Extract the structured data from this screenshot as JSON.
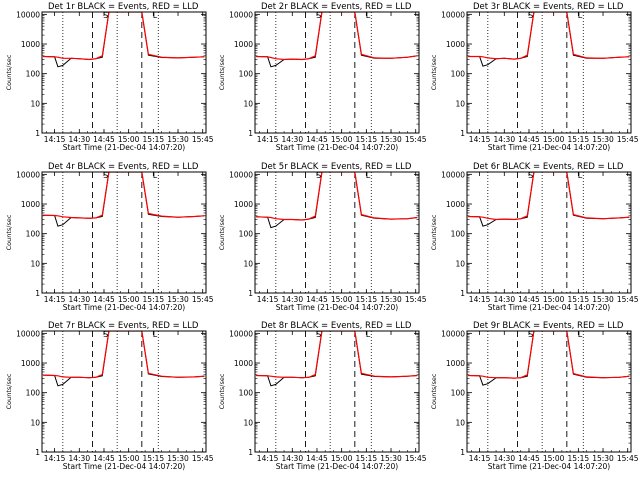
{
  "colors": {
    "events": "#000000",
    "lld": "#ff0000",
    "background": "#ffffff"
  },
  "shared": {
    "type": "line",
    "xlabel": "Start Time (21-Dec-04 14:07:20)",
    "ylabel": "Counts/sec",
    "xticks": [
      "14:15",
      "14:30",
      "14:45",
      "15:00",
      "15:15",
      "15:30",
      "15:45"
    ],
    "yticks": [
      "1",
      "10",
      "100",
      "1000",
      "10000"
    ],
    "yscale": "log",
    "ylim": [
      1,
      12000
    ],
    "xlim_minutes": [
      "14:07:20",
      "15:47:00"
    ],
    "dotted_lines": [
      "14:20",
      "14:53",
      "15:18"
    ],
    "dashed_lines": [
      "14:38",
      "15:08"
    ],
    "markers": {
      "S": "14:46",
      "L": "15:16"
    },
    "series_names": [
      "Events",
      "LLD"
    ]
  },
  "chart_data": [
    {
      "title": "Det 1r BLACK = Events, RED = LLD",
      "x": [
        "14:08",
        "14:15",
        "14:17",
        "14:20",
        "14:25",
        "14:30",
        "14:36",
        "14:40",
        "14:44",
        "14:48",
        "15:08",
        "15:12",
        "15:20",
        "15:30",
        "15:40",
        "15:46"
      ],
      "events": [
        380,
        370,
        170,
        190,
        330,
        320,
        300,
        320,
        360,
        12000,
        12000,
        420,
        350,
        340,
        360,
        370
      ],
      "lld": [
        380,
        370,
        360,
        330,
        330,
        320,
        300,
        320,
        400,
        12000,
        12000,
        450,
        360,
        340,
        360,
        370
      ]
    },
    {
      "title": "Det 2r BLACK = Events, RED = LLD",
      "x": [
        "14:08",
        "14:15",
        "14:17",
        "14:20",
        "14:25",
        "14:30",
        "14:36",
        "14:40",
        "14:44",
        "14:48",
        "15:08",
        "15:12",
        "15:20",
        "15:30",
        "15:40",
        "15:46"
      ],
      "events": [
        380,
        370,
        170,
        190,
        300,
        310,
        300,
        320,
        360,
        12000,
        12000,
        420,
        330,
        330,
        360,
        400
      ],
      "lld": [
        380,
        370,
        350,
        320,
        300,
        310,
        300,
        320,
        400,
        12000,
        12000,
        450,
        340,
        330,
        360,
        400
      ]
    },
    {
      "title": "Det 3r BLACK = Events, RED = LLD",
      "x": [
        "14:08",
        "14:15",
        "14:17",
        "14:20",
        "14:25",
        "14:30",
        "14:36",
        "14:40",
        "14:44",
        "14:48",
        "15:08",
        "15:12",
        "15:20",
        "15:30",
        "15:40",
        "15:46"
      ],
      "events": [
        380,
        380,
        180,
        200,
        320,
        330,
        310,
        330,
        380,
        12000,
        12000,
        420,
        330,
        330,
        360,
        370
      ],
      "lld": [
        380,
        380,
        370,
        340,
        320,
        330,
        310,
        330,
        420,
        12000,
        12000,
        450,
        340,
        330,
        360,
        370
      ]
    },
    {
      "title": "Det 4r BLACK = Events, RED = LLD",
      "x": [
        "14:08",
        "14:15",
        "14:17",
        "14:20",
        "14:25",
        "14:30",
        "14:36",
        "14:40",
        "14:44",
        "14:48",
        "15:08",
        "15:12",
        "15:20",
        "15:30",
        "15:40",
        "15:46"
      ],
      "events": [
        420,
        410,
        180,
        200,
        350,
        340,
        330,
        340,
        380,
        12000,
        12000,
        450,
        380,
        360,
        380,
        400
      ],
      "lld": [
        420,
        410,
        400,
        370,
        350,
        340,
        330,
        340,
        420,
        12000,
        12000,
        480,
        390,
        360,
        380,
        400
      ]
    },
    {
      "title": "Det 5r BLACK = Events, RED = LLD",
      "x": [
        "14:08",
        "14:15",
        "14:17",
        "14:20",
        "14:25",
        "14:30",
        "14:36",
        "14:40",
        "14:44",
        "14:48",
        "15:08",
        "15:12",
        "15:20",
        "15:30",
        "15:40",
        "15:46"
      ],
      "events": [
        370,
        360,
        160,
        180,
        300,
        300,
        290,
        310,
        350,
        12000,
        12000,
        420,
        330,
        310,
        320,
        350
      ],
      "lld": [
        370,
        360,
        350,
        320,
        300,
        300,
        290,
        310,
        390,
        12000,
        12000,
        440,
        340,
        310,
        320,
        350
      ]
    },
    {
      "title": "Det 6r BLACK = Events, RED = LLD",
      "x": [
        "14:08",
        "14:15",
        "14:17",
        "14:20",
        "14:25",
        "14:30",
        "14:36",
        "14:40",
        "14:44",
        "14:48",
        "15:08",
        "15:12",
        "15:20",
        "15:30",
        "15:40",
        "15:46"
      ],
      "events": [
        380,
        370,
        180,
        200,
        300,
        310,
        300,
        320,
        360,
        12000,
        12000,
        420,
        330,
        320,
        340,
        360
      ],
      "lld": [
        380,
        370,
        360,
        330,
        300,
        310,
        300,
        320,
        400,
        12000,
        12000,
        440,
        340,
        320,
        340,
        360
      ]
    },
    {
      "title": "Det 7r BLACK = Events, RED = LLD",
      "x": [
        "14:08",
        "14:15",
        "14:17",
        "14:20",
        "14:25",
        "14:30",
        "14:36",
        "14:40",
        "14:44",
        "14:48",
        "15:08",
        "15:12",
        "15:20",
        "15:30",
        "15:40",
        "15:46"
      ],
      "events": [
        390,
        380,
        170,
        190,
        330,
        330,
        320,
        330,
        370,
        12000,
        12000,
        430,
        350,
        330,
        340,
        360
      ],
      "lld": [
        390,
        380,
        370,
        340,
        330,
        330,
        320,
        330,
        410,
        12000,
        12000,
        450,
        360,
        330,
        340,
        360
      ]
    },
    {
      "title": "Det 8r BLACK = Events, RED = LLD",
      "x": [
        "14:08",
        "14:15",
        "14:17",
        "14:20",
        "14:25",
        "14:30",
        "14:36",
        "14:40",
        "14:44",
        "14:48",
        "15:08",
        "15:12",
        "15:20",
        "15:30",
        "15:40",
        "15:46"
      ],
      "events": [
        380,
        370,
        170,
        190,
        330,
        330,
        320,
        330,
        370,
        12000,
        12000,
        420,
        350,
        340,
        360,
        380
      ],
      "lld": [
        380,
        370,
        360,
        340,
        330,
        330,
        320,
        330,
        410,
        12000,
        12000,
        450,
        360,
        340,
        360,
        380
      ]
    },
    {
      "title": "Det 9r BLACK = Events, RED = LLD",
      "x": [
        "14:08",
        "14:15",
        "14:17",
        "14:20",
        "14:25",
        "14:30",
        "14:36",
        "14:40",
        "14:44",
        "14:48",
        "15:08",
        "15:12",
        "15:20",
        "15:30",
        "15:40",
        "15:46"
      ],
      "events": [
        380,
        370,
        180,
        200,
        320,
        320,
        310,
        320,
        360,
        12000,
        12000,
        420,
        330,
        320,
        330,
        360
      ],
      "lld": [
        380,
        370,
        360,
        330,
        320,
        320,
        310,
        320,
        400,
        12000,
        12000,
        440,
        340,
        320,
        330,
        360
      ]
    }
  ]
}
